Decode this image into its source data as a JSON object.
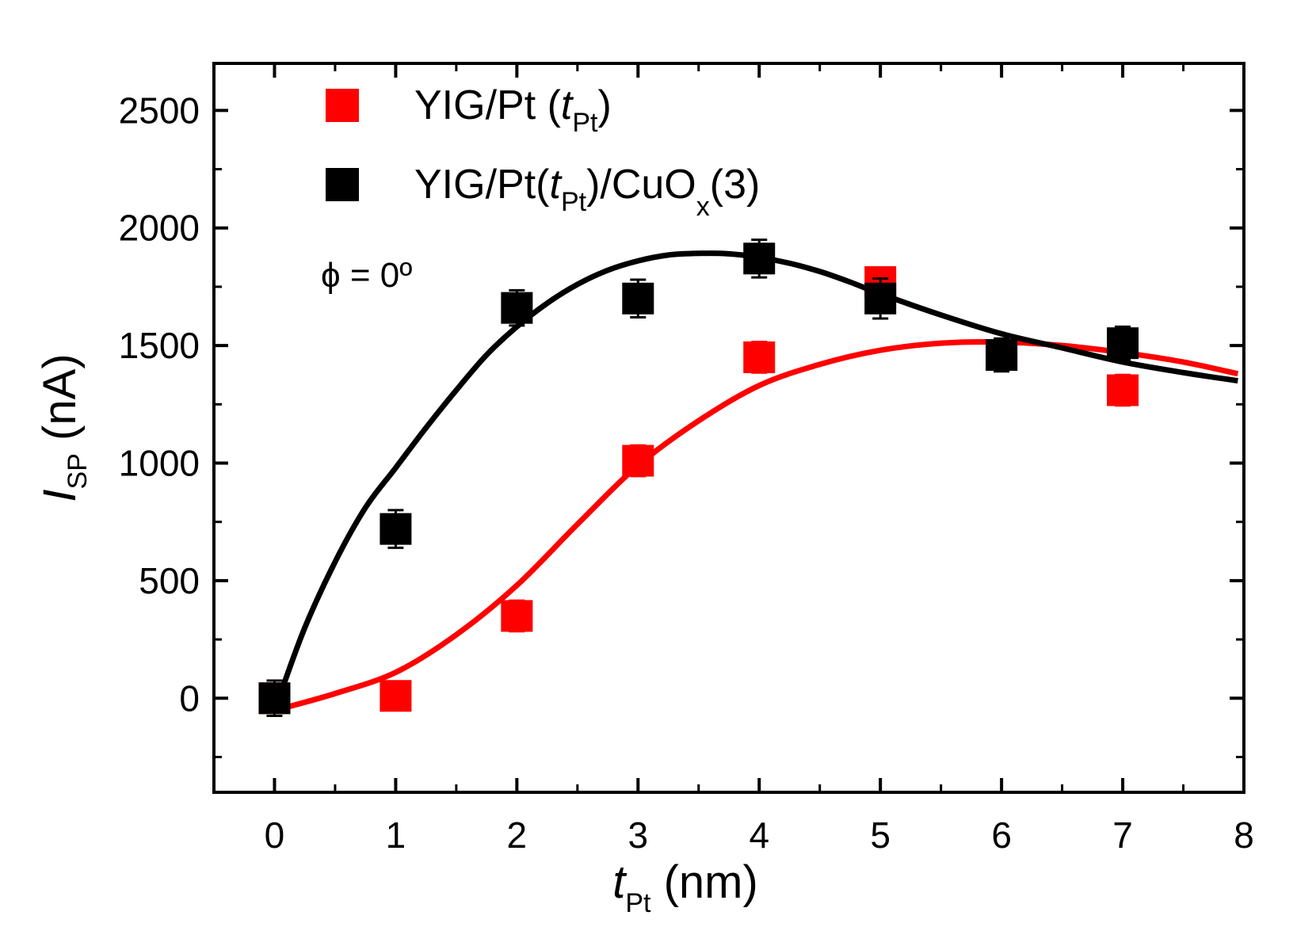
{
  "chart_data": {
    "type": "scatter",
    "title": "",
    "xlabel": {
      "main": "t",
      "sub": "Pt",
      "unit": " (nm)"
    },
    "ylabel": {
      "main": "I",
      "sub": "SP",
      "unit": " (nA)"
    },
    "xlim": [
      -0.5,
      8
    ],
    "ylim": [
      -400,
      2700
    ],
    "xticks": [
      0,
      1,
      2,
      3,
      4,
      5,
      6,
      7,
      8
    ],
    "yticks": [
      0,
      500,
      1000,
      1500,
      2000,
      2500
    ],
    "grid": false,
    "legend_position": "top-left",
    "annotation": "ϕ = 0º",
    "series": [
      {
        "name": "YIG/Pt (tPt)",
        "legend_parts": {
          "pre": "YIG/Pt (",
          "italic": "t",
          "sub": "Pt",
          "post": ")"
        },
        "color": "#ff0000",
        "marker": "square",
        "x": [
          0,
          1,
          2,
          3,
          4,
          5,
          6,
          7
        ],
        "y": [
          0,
          10,
          350,
          1010,
          1450,
          1770,
          1460,
          1310
        ],
        "error": [
          55,
          60,
          65,
          65,
          65,
          55,
          55,
          65
        ],
        "fit_x": [
          0.05,
          0.5,
          1.0,
          1.5,
          2.0,
          2.5,
          3.0,
          3.5,
          4.0,
          4.5,
          5.0,
          5.5,
          6.0,
          6.5,
          7.0,
          7.5,
          7.95
        ],
        "fit_y": [
          -45,
          20,
          110,
          270,
          480,
          740,
          990,
          1180,
          1330,
          1420,
          1480,
          1510,
          1515,
          1500,
          1470,
          1430,
          1380
        ]
      },
      {
        "name": "YIG/Pt(tPt)/CuOx(3)",
        "legend_parts": {
          "pre": "YIG/Pt(",
          "italic": "t",
          "sub": "Pt",
          "mid": ")/CuO",
          "sub2": "x",
          "post": "(3)"
        },
        "color": "#000000",
        "marker": "square",
        "x": [
          0,
          1,
          2,
          3,
          4,
          5,
          6,
          7
        ],
        "y": [
          0,
          720,
          1660,
          1700,
          1870,
          1700,
          1460,
          1510
        ],
        "error": [
          75,
          80,
          75,
          80,
          80,
          85,
          70,
          70
        ],
        "fit_x": [
          0.05,
          0.25,
          0.5,
          0.75,
          1.0,
          1.25,
          1.5,
          1.75,
          2.0,
          2.25,
          2.5,
          2.75,
          3.0,
          3.25,
          3.5,
          3.75,
          4.0,
          4.25,
          4.5,
          4.75,
          5.0,
          5.5,
          6.0,
          6.5,
          7.0,
          7.5,
          7.95
        ],
        "fit_y": [
          20,
          300,
          580,
          810,
          980,
          1150,
          1310,
          1460,
          1580,
          1680,
          1760,
          1820,
          1860,
          1885,
          1892,
          1890,
          1875,
          1850,
          1815,
          1770,
          1720,
          1630,
          1550,
          1490,
          1430,
          1385,
          1350
        ]
      }
    ]
  }
}
